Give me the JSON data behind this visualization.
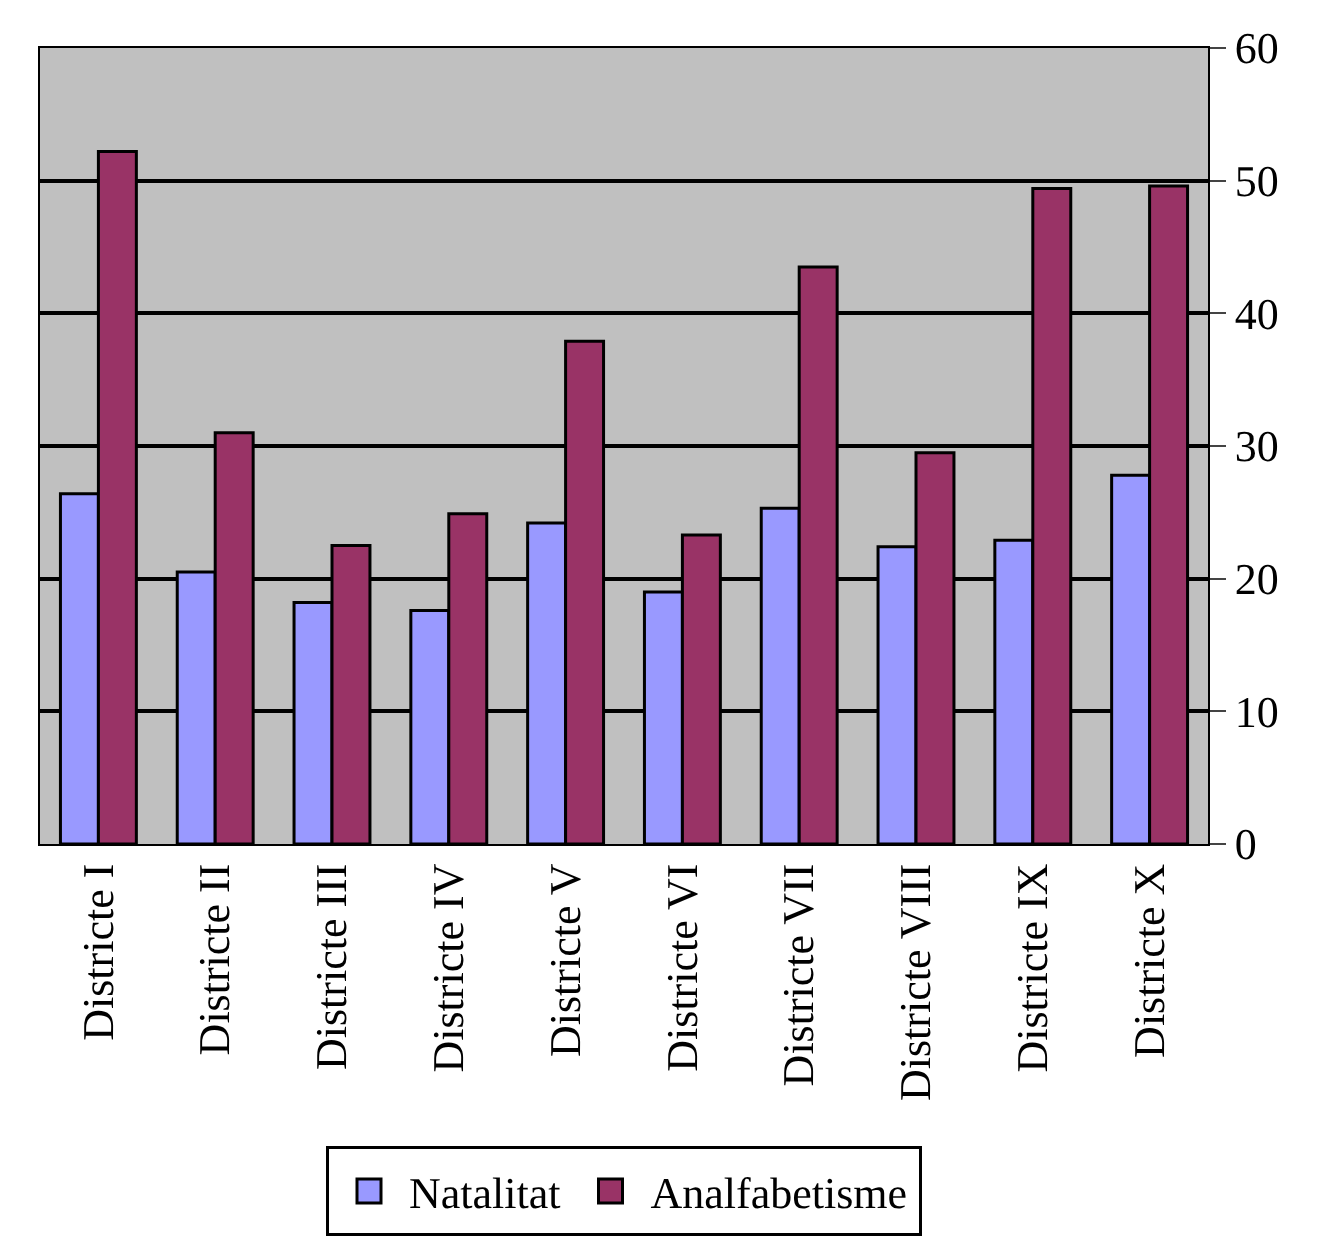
{
  "chart_data": {
    "type": "bar",
    "categories": [
      "Districte I",
      "Districte II",
      "Districte III",
      "Districte IV",
      "Districte V",
      "Districte VI",
      "Districte VII",
      "Districte VIII",
      "Districte IX",
      "Districte X"
    ],
    "series": [
      {
        "name": "Natalitat",
        "color": "#9999ff",
        "values": [
          26.4,
          20.5,
          18.2,
          17.6,
          24.2,
          19.0,
          25.3,
          22.4,
          22.9,
          27.8
        ]
      },
      {
        "name": "Analfabetisme",
        "color": "#993366",
        "values": [
          52.2,
          31.0,
          22.5,
          24.9,
          37.9,
          23.3,
          43.5,
          29.5,
          49.4,
          49.6
        ]
      }
    ],
    "ylim": [
      0,
      60
    ],
    "yticks": [
      0,
      10,
      20,
      30,
      40,
      50,
      60
    ],
    "grid": "y",
    "legend": "bottom"
  }
}
